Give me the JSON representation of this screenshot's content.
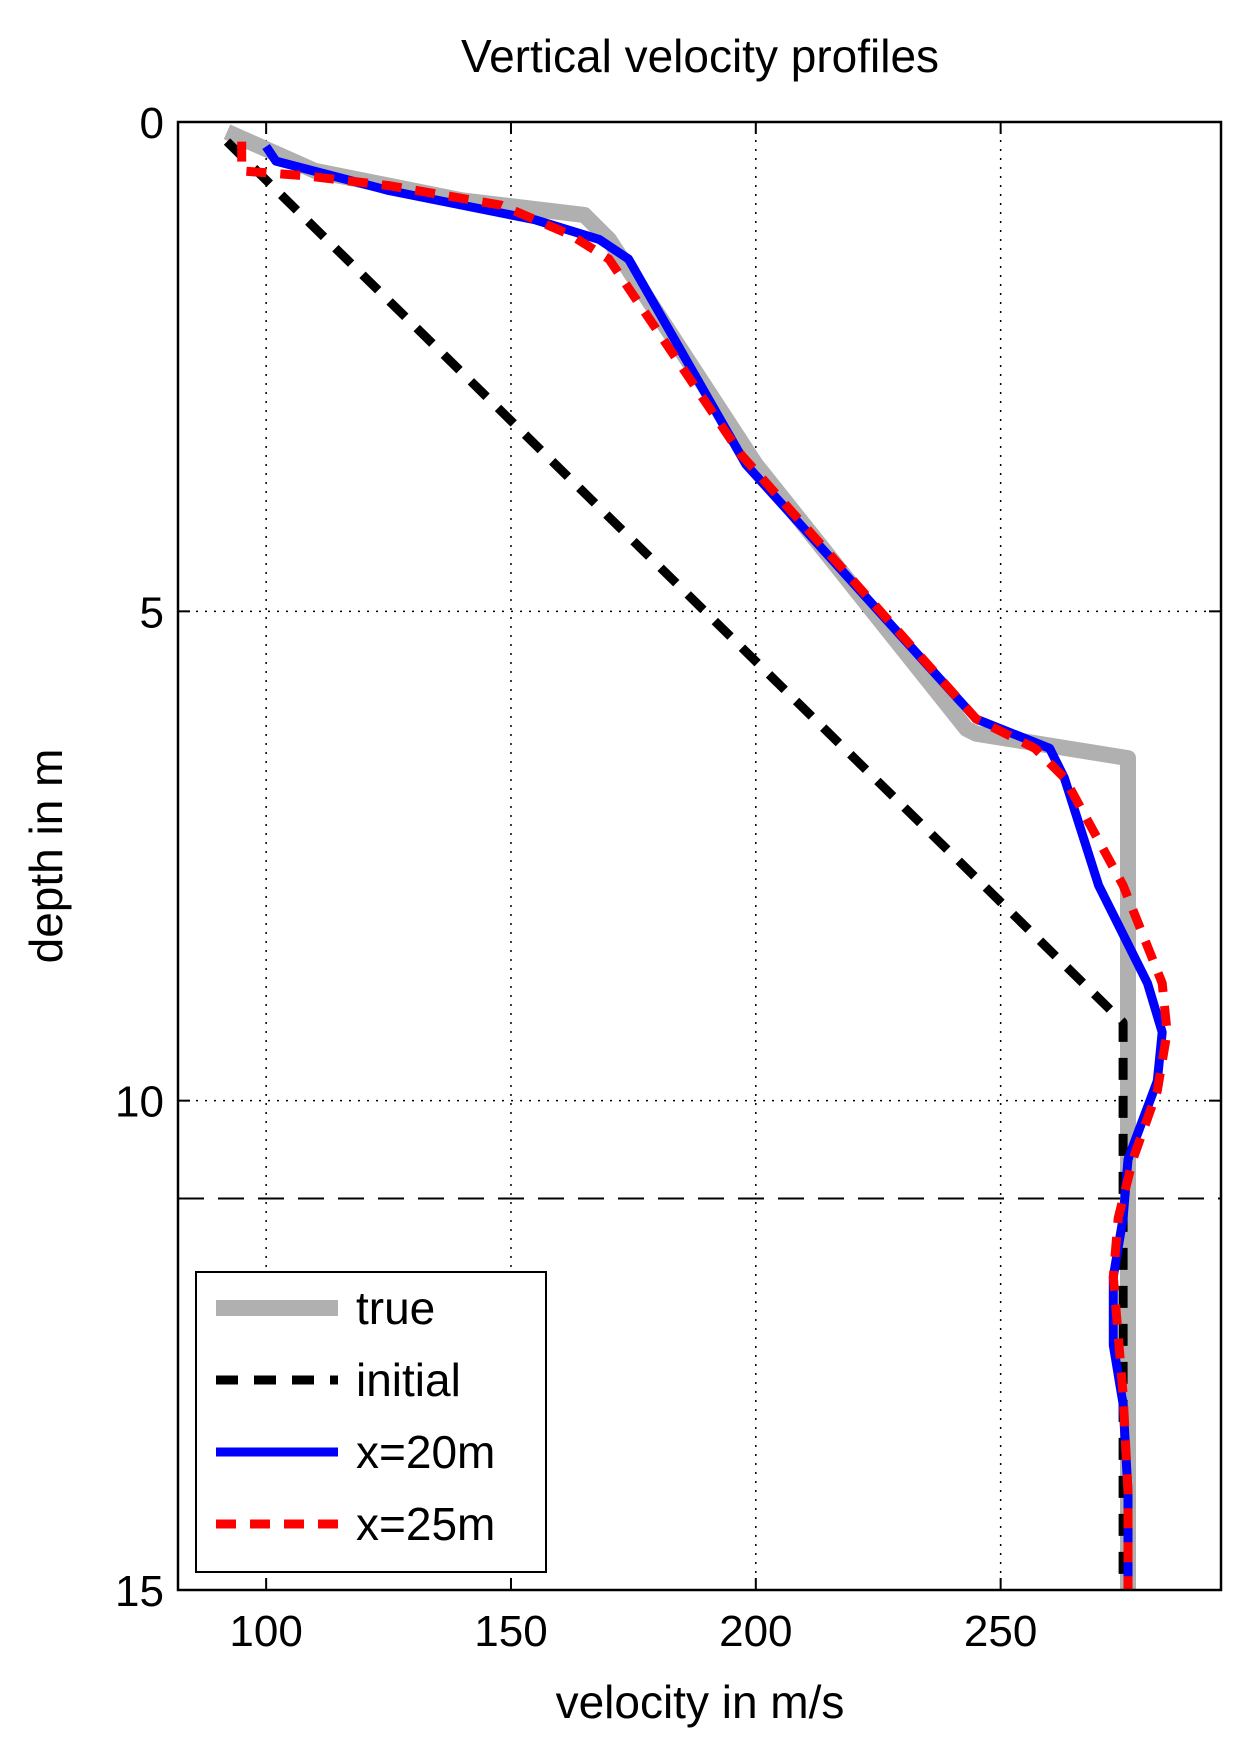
{
  "chart_data": {
    "type": "line",
    "title": "Vertical velocity profiles",
    "xlabel": "velocity in m/s",
    "ylabel": "depth in m",
    "xlim": [
      82,
      295
    ],
    "ylim": [
      15,
      0
    ],
    "y_reversed": true,
    "xticks": [
      100,
      150,
      200,
      250
    ],
    "yticks": [
      0,
      5,
      10,
      15
    ],
    "xtick_labels": [
      "100",
      "150",
      "200",
      "250"
    ],
    "ytick_labels": [
      "0",
      "5",
      "10",
      "15"
    ],
    "grid": true,
    "reference_line": {
      "y": 11,
      "style": "dashed"
    },
    "legend_position": "bottom-left",
    "series": [
      {
        "name": "true",
        "color": "#b0b0b0",
        "style": "solid-thick",
        "x": [
          92,
          110,
          140,
          165,
          170,
          200,
          243,
          245,
          276,
          276,
          276,
          276
        ],
        "y": [
          0.1,
          0.5,
          0.8,
          0.95,
          1.2,
          3.5,
          6.2,
          6.25,
          6.5,
          9.0,
          11.0,
          15.0
        ]
      },
      {
        "name": "initial",
        "color": "#000000",
        "style": "dashed",
        "x": [
          92,
          275,
          275,
          275,
          275
        ],
        "y": [
          0.2,
          9.2,
          11.0,
          13.0,
          15.0
        ]
      },
      {
        "name": "x=20m",
        "color": "#0000ff",
        "style": "solid",
        "x": [
          100,
          102,
          125,
          155,
          168,
          174,
          198,
          245,
          260,
          263,
          270,
          280,
          283,
          282,
          276,
          275,
          273,
          273,
          275,
          276,
          276
        ],
        "y": [
          0.25,
          0.4,
          0.7,
          1.0,
          1.2,
          1.4,
          3.5,
          6.1,
          6.4,
          6.7,
          7.8,
          8.8,
          9.3,
          9.8,
          10.6,
          11.2,
          11.8,
          12.5,
          13.1,
          14.0,
          15.0
        ]
      },
      {
        "name": "x=25m",
        "color": "#ff0000",
        "style": "dashed",
        "x": [
          95,
          95,
          108,
          125,
          148,
          162,
          170,
          197,
          245,
          257,
          263,
          275,
          283,
          284,
          282,
          277,
          274,
          273,
          275,
          276,
          276
        ],
        "y": [
          0.2,
          0.5,
          0.55,
          0.65,
          0.85,
          1.15,
          1.4,
          3.4,
          6.1,
          6.4,
          6.7,
          7.8,
          8.8,
          9.3,
          9.9,
          10.6,
          11.2,
          11.8,
          13.0,
          14.0,
          15.0
        ]
      }
    ]
  }
}
